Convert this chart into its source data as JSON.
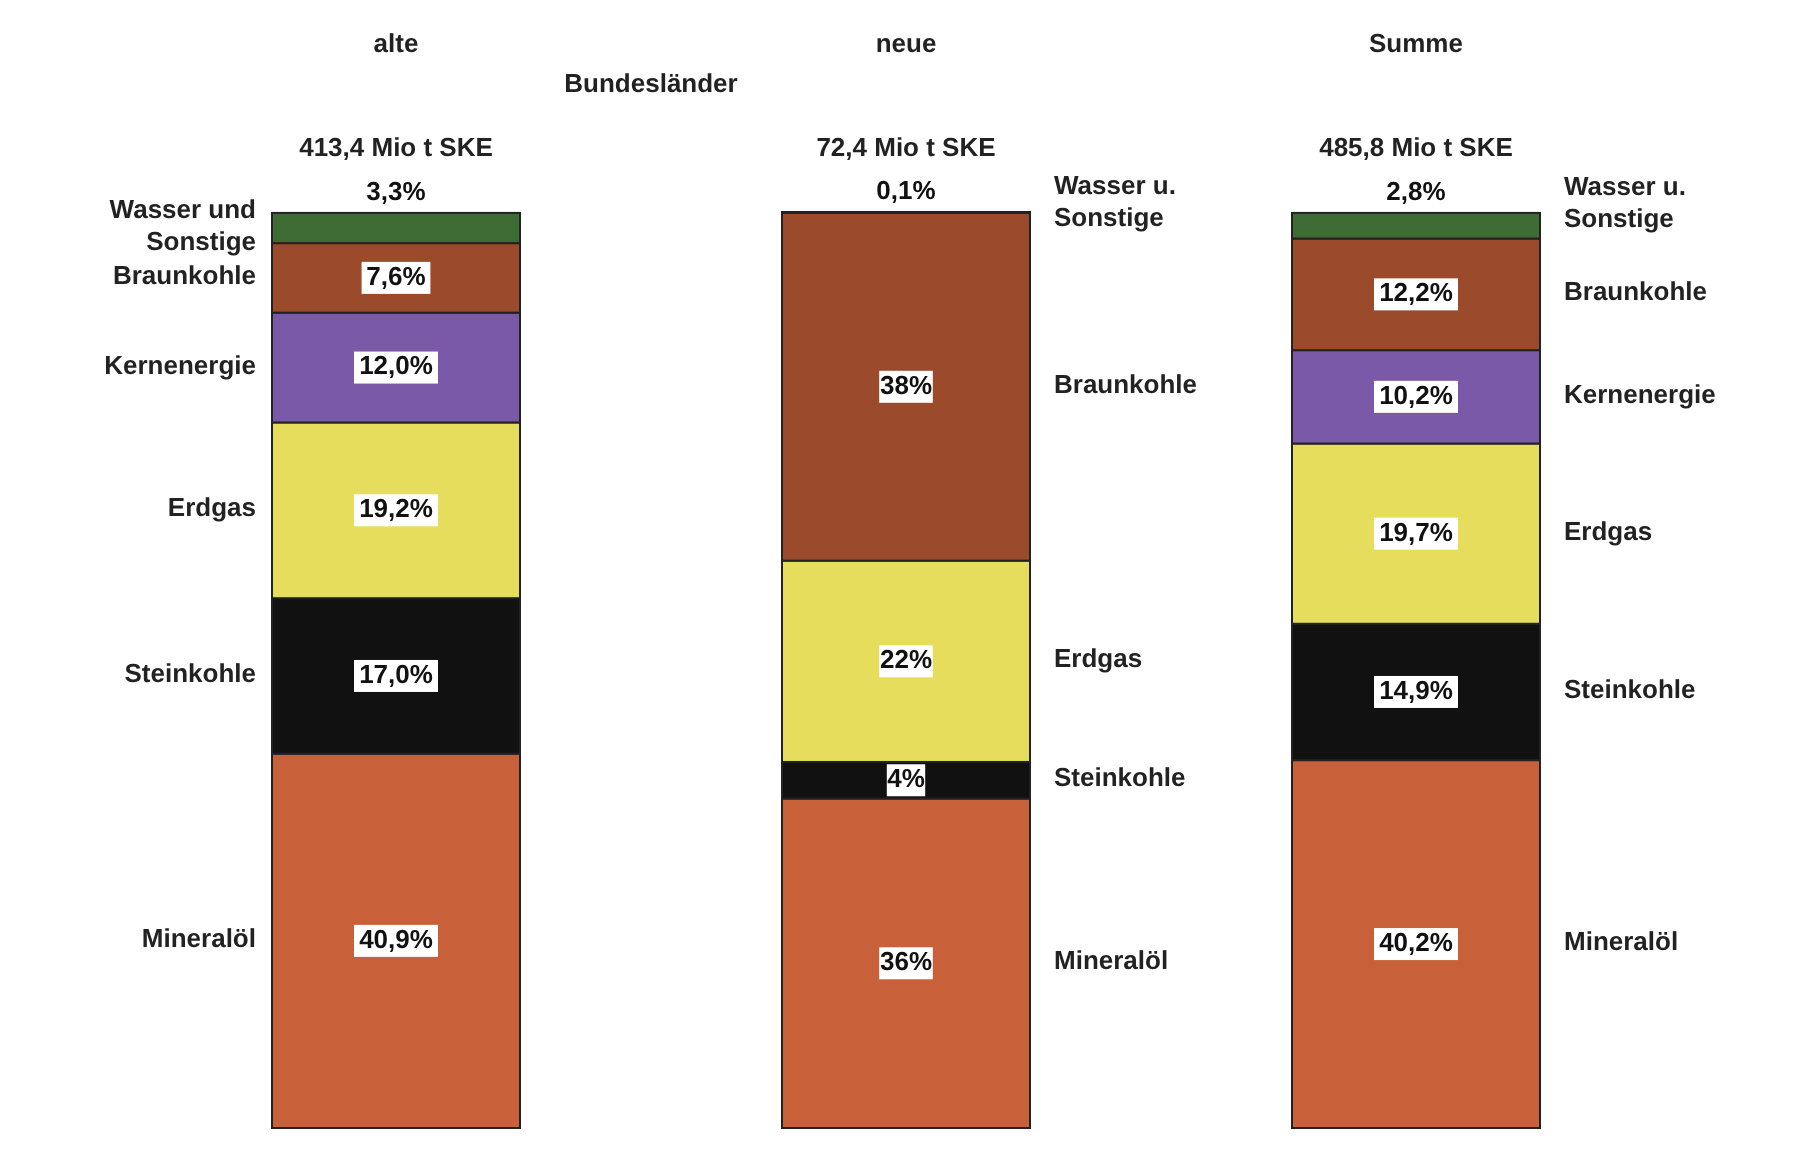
{
  "chart_data": {
    "type": "bar",
    "stacked": true,
    "title": "Bundesländer",
    "categories": [
      "alte",
      "neue",
      "Summe"
    ],
    "series": [
      {
        "name": "Mineralöl",
        "color": "#c8603a",
        "values": [
          40.9,
          36,
          40.2
        ],
        "value_labels": [
          "40,9%",
          "36%",
          "40,2%"
        ]
      },
      {
        "name": "Steinkohle",
        "color": "#111111",
        "values": [
          17.0,
          4,
          14.9
        ],
        "value_labels": [
          "17,0%",
          "4%",
          "14,9%"
        ]
      },
      {
        "name": "Erdgas",
        "color": "#e6dd5c",
        "values": [
          19.2,
          22,
          19.7
        ],
        "value_labels": [
          "19,2%",
          "22%",
          "19,7%"
        ]
      },
      {
        "name": "Kernenergie",
        "color": "#7a5aa8",
        "values": [
          12.0,
          null,
          10.2
        ],
        "value_labels": [
          "12,0%",
          null,
          "10,2%"
        ]
      },
      {
        "name": "Braunkohle",
        "color": "#9c4a2c",
        "values": [
          7.6,
          38,
          12.2
        ],
        "value_labels": [
          "7,6%",
          "38%",
          "12,2%"
        ]
      },
      {
        "name": "Wasser und Sonstige",
        "color": "#3e6b34",
        "values": [
          3.3,
          0.1,
          2.8
        ],
        "value_labels": [
          "3,3%",
          "0,1%",
          "2,8%"
        ]
      }
    ],
    "data_labels": true,
    "annotations": [
      "413,4 Mio t SKE",
      "72,4 Mio t SKE",
      "485,8 Mio t SKE",
      "Wasser u. Sonstige",
      "Braunkohle",
      "Erdgas",
      "Steinkohle",
      "Mineralöl",
      "Wasser u. Sonstige",
      "Braunkohle",
      "Kernenergie",
      "Erdgas",
      "Steinkohle",
      "Mineralöl"
    ]
  }
}
